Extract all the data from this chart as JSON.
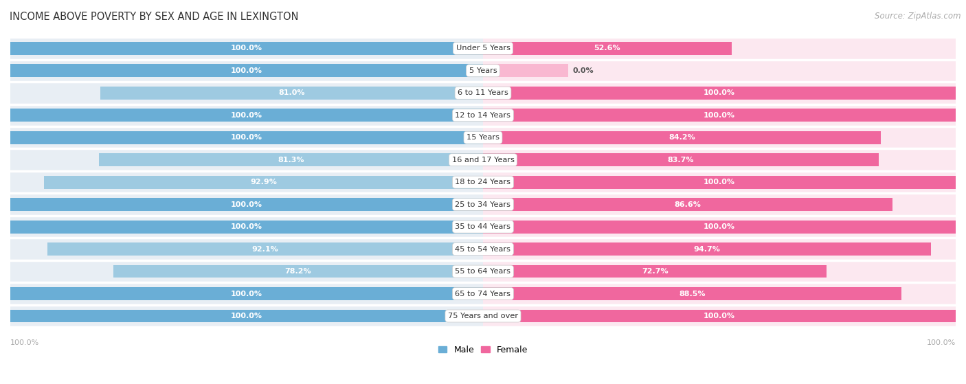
{
  "title": "INCOME ABOVE POVERTY BY SEX AND AGE IN LEXINGTON",
  "source": "Source: ZipAtlas.com",
  "categories": [
    "Under 5 Years",
    "5 Years",
    "6 to 11 Years",
    "12 to 14 Years",
    "15 Years",
    "16 and 17 Years",
    "18 to 24 Years",
    "25 to 34 Years",
    "35 to 44 Years",
    "45 to 54 Years",
    "55 to 64 Years",
    "65 to 74 Years",
    "75 Years and over"
  ],
  "male": [
    100.0,
    100.0,
    81.0,
    100.0,
    100.0,
    81.3,
    92.9,
    100.0,
    100.0,
    92.1,
    78.2,
    100.0,
    100.0
  ],
  "female": [
    52.6,
    0.0,
    100.0,
    100.0,
    84.2,
    83.7,
    100.0,
    86.6,
    100.0,
    94.7,
    72.7,
    88.5,
    100.0
  ],
  "male_color_full": "#6aaed6",
  "male_color_partial": "#9ecae1",
  "female_color_full": "#f0679e",
  "female_color_partial": "#f9b8d1",
  "bar_height": 0.58,
  "background_color": "#ffffff",
  "row_bg_color": "#e8eef4",
  "row_bg_female": "#fce8f0",
  "text_color_white": "#ffffff",
  "text_color_dark": "#555555",
  "axis_label_color": "#aaaaaa",
  "title_color": "#333333",
  "source_color": "#aaaaaa",
  "gap_color": "#ffffff"
}
